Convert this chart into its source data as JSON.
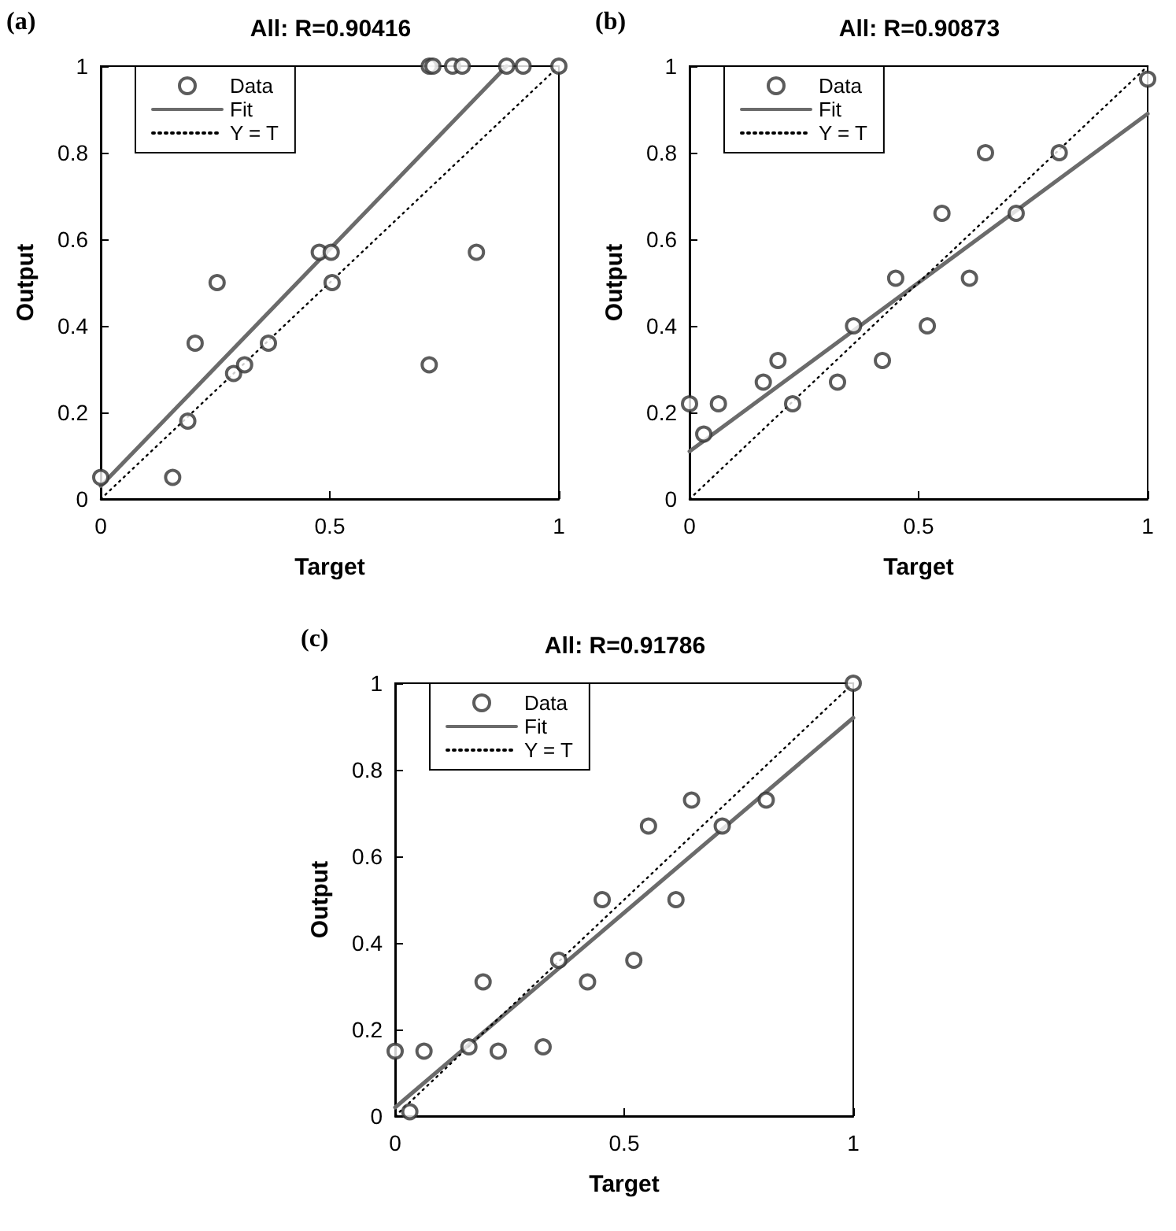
{
  "chart_data": [
    {
      "type": "scatter",
      "title": "All: R=0.90416",
      "annotations": [
        "(a)"
      ],
      "xlabel": "Target",
      "ylabel": "Output",
      "xlim": [
        0,
        1
      ],
      "ylim": [
        0,
        1
      ],
      "xticks": [
        0,
        0.5,
        1
      ],
      "yticks": [
        0,
        0.2,
        0.4,
        0.6,
        0.8,
        1
      ],
      "grid": false,
      "legend": "top left",
      "series": [
        {
          "name": "Data",
          "marker": "circle",
          "color": "#333333",
          "x": [
            0,
            0.157,
            0.19,
            0.206,
            0.254,
            0.29,
            0.314,
            0.366,
            0.477,
            0.503,
            0.505,
            0.717,
            0.717,
            0.725,
            0.768,
            0.789,
            0.886,
            0.922,
            1,
            0.82
          ],
          "values": [
            0.05,
            0.05,
            0.18,
            0.36,
            0.5,
            0.29,
            0.31,
            0.36,
            0.57,
            0.57,
            0.5,
            0.31,
            1,
            1,
            1,
            1,
            1,
            1,
            1,
            0.57
          ]
        },
        {
          "name": "Fit",
          "type": "line",
          "marker": "none",
          "line_style": "solid",
          "color": "#6b6b6b",
          "x": [
            0,
            0.886
          ],
          "values": [
            0.03,
            1
          ]
        },
        {
          "name": "Y = T",
          "type": "line",
          "marker": "none",
          "line_style": "dotted",
          "color": "#000000",
          "x": [
            0,
            1
          ],
          "values": [
            0,
            1
          ]
        }
      ]
    },
    {
      "type": "scatter",
      "title": "All: R=0.90873",
      "annotations": [
        "(b)"
      ],
      "xlabel": "Target",
      "ylabel": "Output",
      "xlim": [
        0,
        1
      ],
      "ylim": [
        0,
        1
      ],
      "xticks": [
        0,
        0.5,
        1
      ],
      "yticks": [
        0,
        0.2,
        0.4,
        0.6,
        0.8,
        1
      ],
      "grid": false,
      "legend": "top left",
      "series": [
        {
          "name": "Data",
          "marker": "circle",
          "color": "#333333",
          "x": [
            0,
            0.031,
            0.063,
            0.161,
            0.193,
            0.225,
            0.323,
            0.358,
            0.421,
            0.45,
            0.519,
            0.551,
            0.611,
            0.646,
            0.713,
            0.807,
            1
          ],
          "values": [
            0.22,
            0.15,
            0.22,
            0.27,
            0.32,
            0.22,
            0.27,
            0.4,
            0.32,
            0.51,
            0.4,
            0.66,
            0.51,
            0.8,
            0.66,
            0.8,
            0.97
          ]
        },
        {
          "name": "Fit",
          "type": "line",
          "marker": "none",
          "line_style": "solid",
          "color": "#6b6b6b",
          "x": [
            0,
            1
          ],
          "values": [
            0.11,
            0.89
          ]
        },
        {
          "name": "Y = T",
          "type": "line",
          "marker": "none",
          "line_style": "dotted",
          "color": "#000000",
          "x": [
            0,
            1
          ],
          "values": [
            0,
            1
          ]
        }
      ]
    },
    {
      "type": "scatter",
      "title": "All: R=0.91786",
      "annotations": [
        "(c)"
      ],
      "xlabel": "Target",
      "ylabel": "Output",
      "xlim": [
        0,
        1
      ],
      "ylim": [
        0,
        1
      ],
      "xticks": [
        0,
        0.5,
        1
      ],
      "yticks": [
        0,
        0.2,
        0.4,
        0.6,
        0.8,
        1
      ],
      "grid": false,
      "legend": "top left",
      "series": [
        {
          "name": "Data",
          "marker": "circle",
          "color": "#333333",
          "x": [
            0,
            0.032,
            0.063,
            0.161,
            0.192,
            0.225,
            0.323,
            0.357,
            0.42,
            0.452,
            0.521,
            0.553,
            0.613,
            0.647,
            0.714,
            0.81,
            1
          ],
          "values": [
            0.15,
            0.01,
            0.15,
            0.16,
            0.31,
            0.15,
            0.16,
            0.36,
            0.31,
            0.5,
            0.36,
            0.67,
            0.5,
            0.73,
            0.67,
            0.73,
            1
          ]
        },
        {
          "name": "Fit",
          "type": "line",
          "marker": "none",
          "line_style": "solid",
          "color": "#6b6b6b",
          "x": [
            0,
            1
          ],
          "values": [
            0.02,
            0.92
          ]
        },
        {
          "name": "Y = T",
          "type": "line",
          "marker": "none",
          "line_style": "dotted",
          "color": "#000000",
          "x": [
            0,
            1
          ],
          "values": [
            0,
            1
          ]
        }
      ]
    }
  ]
}
